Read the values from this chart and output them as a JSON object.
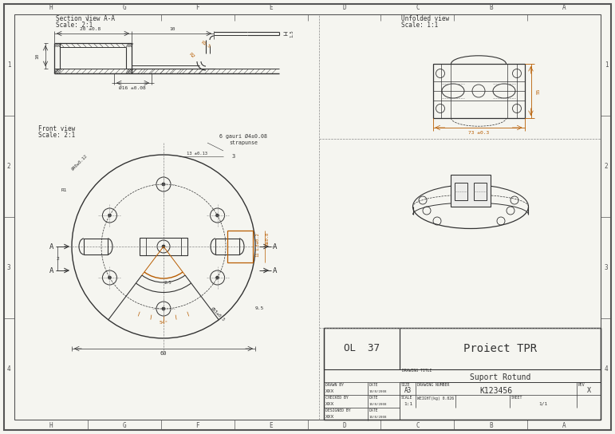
{
  "bg_color": "#f5f5f0",
  "line_color": "#333333",
  "orange_color": "#b85c00",
  "gray_color": "#888888",
  "border_color": "#555555",
  "title_block": {
    "project": "Proiect TPR",
    "title": "Suport Rotund",
    "ol": "OL 37",
    "drawn_by": "XXX",
    "checked_by": "XXX",
    "designed_by": "XXX",
    "date": "10/8/2008",
    "size": "A3",
    "drawing_number": "K123456",
    "rev": "X",
    "scale_text": "1:1",
    "weight": "0.026",
    "sheet": "1/1"
  },
  "section_view_label": "Section view A-A",
  "section_view_scale": "Scale: 2:1",
  "front_view_label": "Front view",
  "front_view_scale": "Scale: 2:1",
  "unfolded_view_label": "Unfolded view",
  "unfolded_view_scale": "Scale: 1:1",
  "border_letters": [
    "H",
    "G",
    "F",
    "E",
    "D",
    "C",
    "B",
    "A"
  ],
  "border_numbers": [
    "4",
    "3",
    "2",
    "1"
  ]
}
